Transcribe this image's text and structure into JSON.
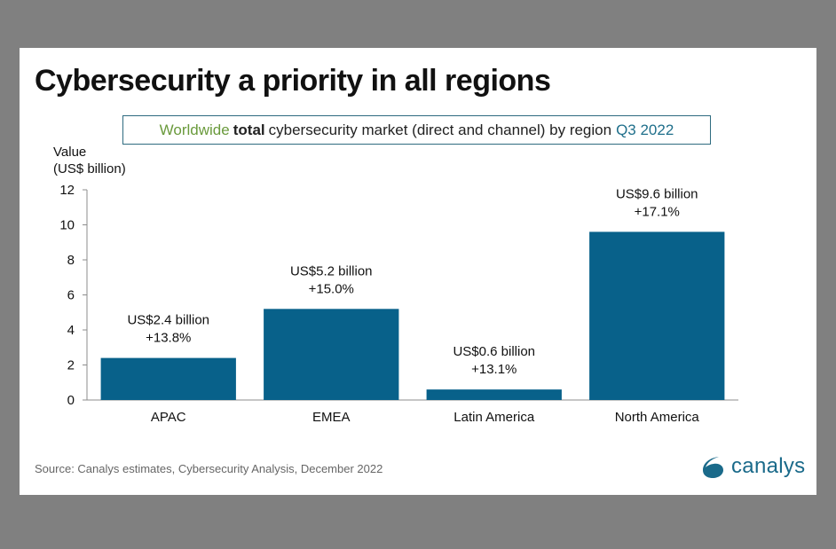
{
  "title": "Cybersecurity a priority in all regions",
  "subtitle": {
    "part1": "Worldwide",
    "part2": "total",
    "part3": "cybersecurity market (direct and channel) by region",
    "part4": "Q3 2022"
  },
  "source": "Source: Canalys estimates, Cybersecurity Analysis, December 2022",
  "logo": {
    "icon": "canalys-swoosh-icon",
    "text": "canalys"
  },
  "colors": {
    "bar": "#08618a",
    "subtitle_green": "#6a9a3c",
    "subtitle_teal": "#1f6f8b",
    "brand": "#1a6a8a"
  },
  "chart_data": {
    "type": "bar",
    "title": "Cybersecurity a priority in all regions",
    "subtitle": "Worldwide total cybersecurity market (direct and channel) by region Q3 2022",
    "xlabel": "",
    "ylabel_lines": [
      "Value",
      "(US$ billion)"
    ],
    "categories": [
      "APAC",
      "EMEA",
      "Latin America",
      "North America"
    ],
    "values": [
      2.4,
      5.2,
      0.6,
      9.6
    ],
    "data_labels": [
      [
        "US$2.4 billion",
        "+13.8%"
      ],
      [
        "US$5.2 billion",
        "+15.0%"
      ],
      [
        "US$0.6 billion",
        "+13.1%"
      ],
      [
        "US$9.6 billion",
        "+17.1%"
      ]
    ],
    "ylim": [
      0,
      12
    ],
    "yticks": [
      0,
      2,
      4,
      6,
      8,
      10,
      12
    ],
    "grid": false,
    "legend": "none"
  }
}
